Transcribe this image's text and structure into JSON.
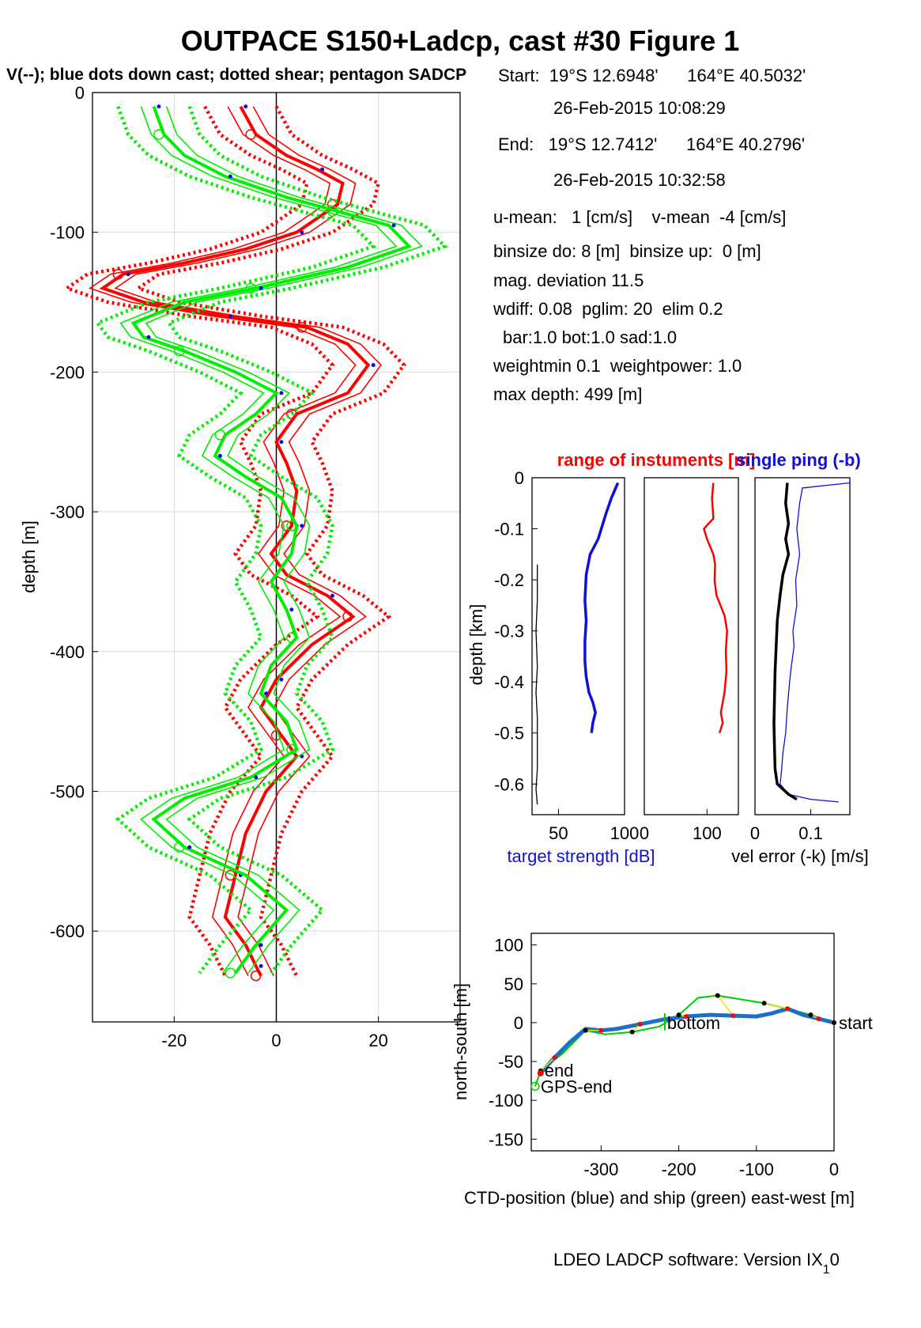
{
  "title": "OUTPACE S150+Ladcp, cast #30  Figure 1",
  "subtitle": "V(--); blue dots down cast; dotted shear; pentagon SADCP",
  "footer": {
    "text": "LDEO LADCP software: Version IX",
    "sub": "1",
    "tail": "0"
  },
  "colors": {
    "u": "#ff0000",
    "v": "#00ee00",
    "ctd": "#1a70c8",
    "ts": "#1010dd",
    "err": "#000000",
    "axis": "#000000",
    "grid": "#d9d9d9"
  },
  "info": {
    "lines": [
      "Start:  19°S 12.6948'      164°E 40.5032'",
      "26-Feb-2015 10:08:29",
      "End:   19°S 12.7412'      164°E 40.2796'",
      "26-Feb-2015 10:32:58",
      "u-mean:   1 [cm/s]    v-mean  -4 [cm/s]",
      "binsize do: 8 [m]  binsize up:  0 [m]",
      "mag. deviation 11.5",
      "wdiff: 0.08  pglim: 20  elim 0.2",
      "bar:1.0 bot:1.0 sad:1.0",
      "weightmin 0.1  weightpower: 1.0",
      "max depth: 499 [m]"
    ]
  },
  "chart_data": [
    {
      "type": "line",
      "panel": "velocity-profile",
      "ylabel": "depth [m]",
      "xlim": [
        -36,
        36
      ],
      "ylim": [
        -665,
        0
      ],
      "xticks": [
        -20,
        0,
        20
      ],
      "yticks": [
        0,
        -100,
        -200,
        -300,
        -400,
        -500,
        -600
      ],
      "grid": true,
      "series": [
        {
          "name": "u",
          "color": "#ff0000",
          "x": [
            -7,
            -4,
            2,
            8,
            13,
            12,
            4,
            -6,
            -18,
            -30,
            -34,
            -26,
            -10,
            6,
            14,
            18,
            14,
            4,
            0,
            2,
            4,
            3,
            -1,
            2,
            10,
            15,
            7,
            0,
            -3,
            1,
            4,
            -2,
            -6,
            -8,
            -10,
            -6,
            -4,
            -3
          ],
          "y": [
            -10,
            -30,
            -45,
            -55,
            -65,
            -80,
            -100,
            -112,
            -122,
            -130,
            -140,
            -150,
            -160,
            -168,
            -180,
            -195,
            -215,
            -230,
            -250,
            -265,
            -285,
            -310,
            -330,
            -345,
            -360,
            -375,
            -395,
            -420,
            -440,
            -460,
            -475,
            -500,
            -530,
            -560,
            -590,
            -610,
            -625,
            -632
          ]
        },
        {
          "name": "v",
          "color": "#00ee00",
          "x": [
            -24,
            -22,
            -18,
            -10,
            2,
            12,
            22,
            26,
            14,
            -4,
            -18,
            -28,
            -26,
            -18,
            -8,
            0,
            -4,
            -10,
            -12,
            -6,
            1,
            4,
            3,
            -1,
            2,
            4,
            -1,
            -3,
            2,
            4,
            -5,
            -18,
            -24,
            -18,
            -6,
            2,
            -4,
            -8
          ],
          "y": [
            -10,
            -30,
            -45,
            -60,
            -75,
            -85,
            -95,
            -110,
            -125,
            -140,
            -150,
            -165,
            -175,
            -185,
            -200,
            -215,
            -230,
            -245,
            -260,
            -275,
            -290,
            -310,
            -330,
            -350,
            -370,
            -390,
            -410,
            -430,
            -450,
            -470,
            -490,
            -505,
            -520,
            -540,
            -560,
            -585,
            -610,
            -630
          ]
        }
      ]
    },
    {
      "type": "line",
      "panel": "target-strength",
      "xlabel": "target strength [dB]",
      "ylabel": "depth [km]",
      "xlim": [
        30,
        100
      ],
      "ylim": [
        -0.66,
        0
      ],
      "xticks": [
        50,
        100
      ],
      "yticks": [
        0,
        -0.1,
        -0.2,
        -0.3,
        -0.4,
        -0.5,
        -0.6
      ],
      "series": [
        {
          "name": "target strength",
          "color": "#1010dd",
          "x": [
            95,
            90,
            86,
            80,
            74,
            71,
            70,
            71,
            70,
            70,
            71,
            73,
            76,
            78,
            76,
            75
          ],
          "y": [
            -0.01,
            -0.04,
            -0.07,
            -0.12,
            -0.15,
            -0.19,
            -0.24,
            -0.28,
            -0.32,
            -0.36,
            -0.39,
            -0.42,
            -0.44,
            -0.46,
            -0.48,
            -0.5
          ]
        },
        {
          "color": "#000000",
          "x": [
            34,
            34,
            33,
            34,
            33,
            34,
            34,
            34,
            33,
            34
          ],
          "y": [
            -0.17,
            -0.24,
            -0.3,
            -0.37,
            -0.42,
            -0.47,
            -0.52,
            -0.57,
            -0.61,
            -0.64
          ]
        }
      ]
    },
    {
      "type": "line",
      "panel": "instrument-range",
      "title": "range of instuments [m]",
      "xlim": [
        0,
        150
      ],
      "ylim": [
        -0.66,
        0
      ],
      "xticks": [
        0,
        100
      ],
      "series": [
        {
          "color": "#ff0000",
          "x": [
            110,
            108,
            110,
            95,
            100,
            110,
            113,
            112,
            115,
            128,
            132,
            130,
            131,
            128,
            125,
            122,
            125,
            120
          ],
          "y": [
            -0.01,
            -0.04,
            -0.08,
            -0.1,
            -0.12,
            -0.15,
            -0.17,
            -0.2,
            -0.23,
            -0.27,
            -0.3,
            -0.34,
            -0.38,
            -0.42,
            -0.44,
            -0.46,
            -0.48,
            -0.5
          ]
        }
      ]
    },
    {
      "type": "line",
      "panel": "velocity-error",
      "title": "single ping (-b)",
      "xlabel": "vel error (-k) [m/s]",
      "xlim": [
        0,
        0.17
      ],
      "ylim": [
        -0.66,
        0
      ],
      "xticks": [
        0,
        0.1
      ],
      "series": [
        {
          "color": "#000000",
          "x": [
            0.058,
            0.055,
            0.06,
            0.055,
            0.06,
            0.05,
            0.045,
            0.04,
            0.038,
            0.036,
            0.035,
            0.034,
            0.035,
            0.036,
            0.04,
            0.05,
            0.06,
            0.075
          ],
          "y": [
            -0.01,
            -0.05,
            -0.09,
            -0.12,
            -0.15,
            -0.19,
            -0.23,
            -0.28,
            -0.33,
            -0.38,
            -0.43,
            -0.48,
            -0.53,
            -0.57,
            -0.6,
            -0.61,
            -0.62,
            -0.63
          ]
        },
        {
          "color": "#1010dd",
          "x": [
            0.17,
            0.085,
            0.08,
            0.075,
            0.08,
            0.073,
            0.075,
            0.068,
            0.07,
            0.065,
            0.062,
            0.058,
            0.055,
            0.05,
            0.047,
            0.045,
            0.06,
            0.1,
            0.15
          ],
          "y": [
            -0.01,
            -0.02,
            -0.05,
            -0.1,
            -0.15,
            -0.2,
            -0.25,
            -0.3,
            -0.33,
            -0.37,
            -0.4,
            -0.45,
            -0.5,
            -0.54,
            -0.58,
            -0.6,
            -0.62,
            -0.63,
            -0.635
          ]
        }
      ]
    },
    {
      "type": "line",
      "panel": "position-track",
      "xlabel": "CTD-position (blue) and ship (green) east-west [m]",
      "ylabel": "north-south [m]",
      "xlim": [
        -390,
        0
      ],
      "ylim": [
        -165,
        115
      ],
      "xticks": [
        -300,
        -200,
        -100,
        0
      ],
      "yticks": [
        100,
        50,
        0,
        -50,
        -100,
        -150
      ],
      "annotations": [
        "start",
        "bottom",
        "end",
        "GPS-end"
      ],
      "series": [
        {
          "name": "CTD",
          "color": "#1a70c8",
          "x": [
            0,
            -20,
            -40,
            -60,
            -80,
            -100,
            -130,
            -160,
            -190,
            -220,
            -250,
            -280,
            -300,
            -320,
            -340,
            -360,
            -378
          ],
          "y": [
            0,
            5,
            10,
            18,
            12,
            8,
            9,
            10,
            8,
            4,
            -2,
            -8,
            -10,
            -8,
            -25,
            -45,
            -65
          ]
        },
        {
          "name": "ship",
          "color": "#00cc00",
          "x": [
            0,
            -30,
            -60,
            -90,
            -120,
            -150,
            -175,
            -200,
            -225,
            -260,
            -295,
            -320,
            -350,
            -378,
            -385
          ],
          "y": [
            0,
            10,
            18,
            25,
            30,
            35,
            32,
            10,
            -5,
            -12,
            -15,
            -10,
            -40,
            -62,
            -82
          ]
        }
      ]
    }
  ]
}
